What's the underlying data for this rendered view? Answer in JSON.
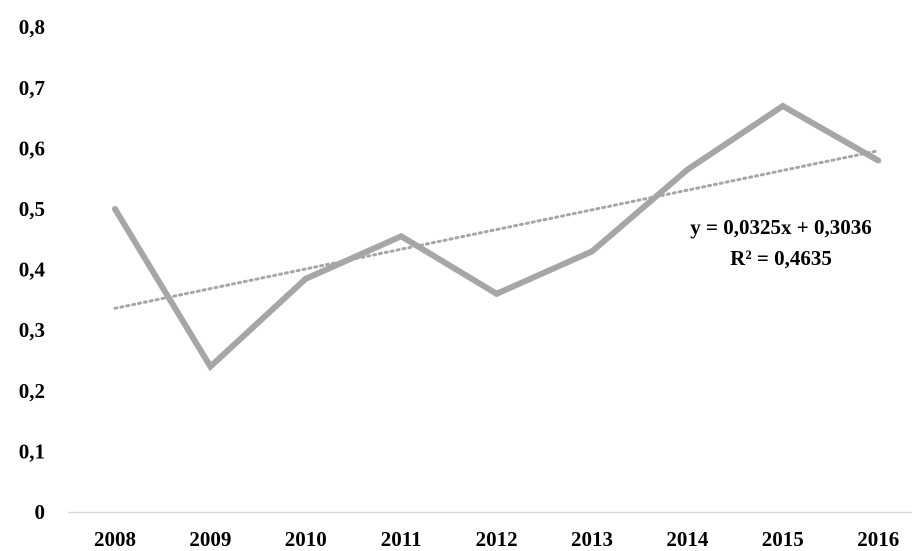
{
  "chart_data": {
    "type": "line",
    "title": "",
    "xlabel": "",
    "ylabel": "",
    "categories": [
      "2008",
      "2009",
      "2010",
      "2011",
      "2012",
      "2013",
      "2014",
      "2015",
      "2016"
    ],
    "series": [
      {
        "values": [
          0.5,
          0.24,
          0.385,
          0.455,
          0.36,
          0.43,
          0.565,
          0.67,
          0.58
        ],
        "color": "#a6a6a6"
      }
    ],
    "trendline": {
      "type": "linear",
      "style": "dotted",
      "color": "#a6a6a6",
      "slope": 0.0325,
      "intercept": 0.3036,
      "equation": "y = 0,0325x + 0,3036",
      "r_squared": "R² = 0,4635"
    },
    "y_ticks": [
      "0",
      "0,1",
      "0,2",
      "0,3",
      "0,4",
      "0,5",
      "0,6",
      "0,7",
      "0,8"
    ],
    "ylim": [
      0,
      0.8
    ],
    "grid": false,
    "legend": "none"
  }
}
